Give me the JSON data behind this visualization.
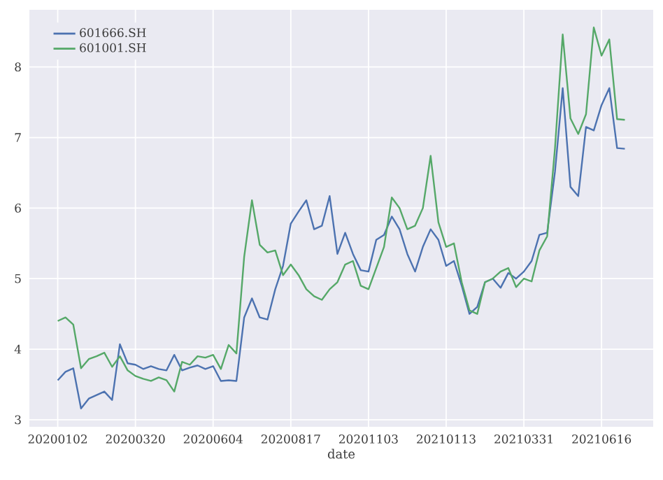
{
  "chart_data": {
    "type": "line",
    "xlabel": "date",
    "categories": [
      "20200102",
      null,
      null,
      null,
      null,
      null,
      null,
      null,
      null,
      null,
      "20200320",
      null,
      null,
      null,
      null,
      null,
      null,
      null,
      null,
      null,
      "20200604",
      null,
      null,
      null,
      null,
      null,
      null,
      null,
      null,
      null,
      "20200817",
      null,
      null,
      null,
      null,
      null,
      null,
      null,
      null,
      null,
      "20201103",
      null,
      null,
      null,
      null,
      null,
      null,
      null,
      null,
      null,
      "20210113",
      null,
      null,
      null,
      null,
      null,
      null,
      null,
      null,
      null,
      "20210331",
      null,
      null,
      null,
      null,
      null,
      null,
      null,
      null,
      null,
      "20210616",
      null,
      null,
      null
    ],
    "ylim": [
      2.9,
      8.81
    ],
    "yticks": [
      3,
      4,
      5,
      6,
      7,
      8
    ],
    "grid": true,
    "legend": "top left",
    "line_style": "solid",
    "marker": "none",
    "series": [
      {
        "name": "601666.SH",
        "color": "#4c72b0",
        "values": [
          3.56,
          3.68,
          3.73,
          3.16,
          3.3,
          3.35,
          3.4,
          3.28,
          4.07,
          3.8,
          3.78,
          3.72,
          3.76,
          3.72,
          3.7,
          3.92,
          3.7,
          3.74,
          3.77,
          3.72,
          3.76,
          3.55,
          3.56,
          3.55,
          4.45,
          4.72,
          4.45,
          4.42,
          4.85,
          5.18,
          5.78,
          5.95,
          6.11,
          5.7,
          5.75,
          6.17,
          5.35,
          5.65,
          5.35,
          5.12,
          5.1,
          5.55,
          5.62,
          5.88,
          5.7,
          5.35,
          5.1,
          5.45,
          5.7,
          5.55,
          5.18,
          5.25,
          4.9,
          4.5,
          4.6,
          4.95,
          5.0,
          4.87,
          5.08,
          5.0,
          5.1,
          5.25,
          5.62,
          5.65,
          6.51,
          7.7,
          6.3,
          6.17,
          7.15,
          7.1,
          7.46,
          7.7,
          6.85,
          6.84
        ]
      },
      {
        "name": "601001.SH",
        "color": "#55a868",
        "values": [
          4.4,
          4.45,
          4.35,
          3.73,
          3.86,
          3.9,
          3.95,
          3.75,
          3.9,
          3.7,
          3.62,
          3.58,
          3.55,
          3.6,
          3.56,
          3.4,
          3.82,
          3.78,
          3.9,
          3.88,
          3.92,
          3.72,
          4.06,
          3.94,
          5.31,
          6.11,
          5.48,
          5.37,
          5.4,
          5.05,
          5.2,
          5.05,
          4.85,
          4.75,
          4.7,
          4.85,
          4.95,
          5.2,
          5.25,
          4.9,
          4.85,
          5.15,
          5.45,
          6.15,
          6.0,
          5.7,
          5.75,
          6.0,
          6.74,
          5.8,
          5.45,
          5.5,
          4.95,
          4.55,
          4.5,
          4.95,
          5.0,
          5.1,
          5.15,
          4.88,
          5.0,
          4.96,
          5.4,
          5.6,
          6.84,
          8.46,
          7.27,
          7.05,
          7.33,
          8.56,
          8.16,
          8.39,
          7.26,
          7.25
        ]
      }
    ]
  }
}
